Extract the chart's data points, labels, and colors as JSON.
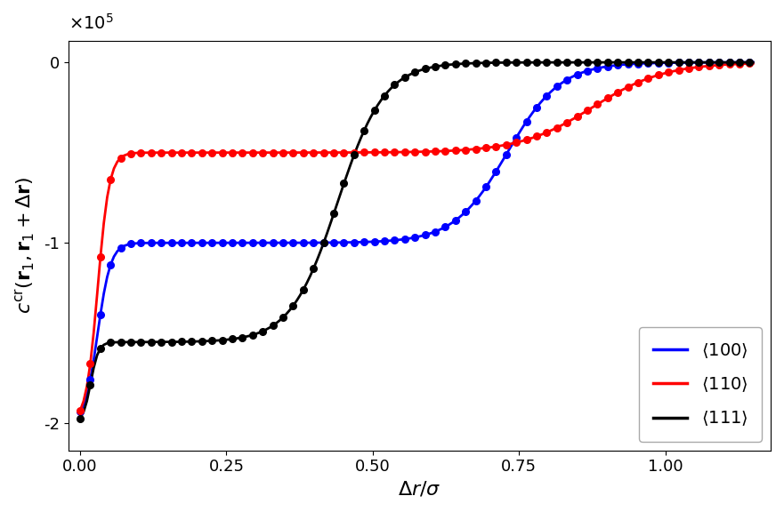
{
  "xlabel": "$\\Delta r/\\sigma$",
  "ylabel": "$c^{\\mathrm{cr}}(\\mathbf{r}_1, \\mathbf{r}_1 + \\Delta\\mathbf{r})$",
  "xlim": [
    -0.02,
    1.18
  ],
  "ylim": [
    -2.15,
    0.12
  ],
  "yticks": [
    -2,
    -1,
    0
  ],
  "xticks": [
    0.0,
    0.25,
    0.5,
    0.75,
    1.0
  ],
  "legend_labels": [
    "$\\langle 100 \\rangle$",
    "$\\langle 110 \\rangle$",
    "$\\langle 111 \\rangle$"
  ],
  "legend_colors": [
    "blue",
    "red",
    "black"
  ],
  "marker_step": 3,
  "linewidth": 2.0,
  "markersize": 5.5
}
